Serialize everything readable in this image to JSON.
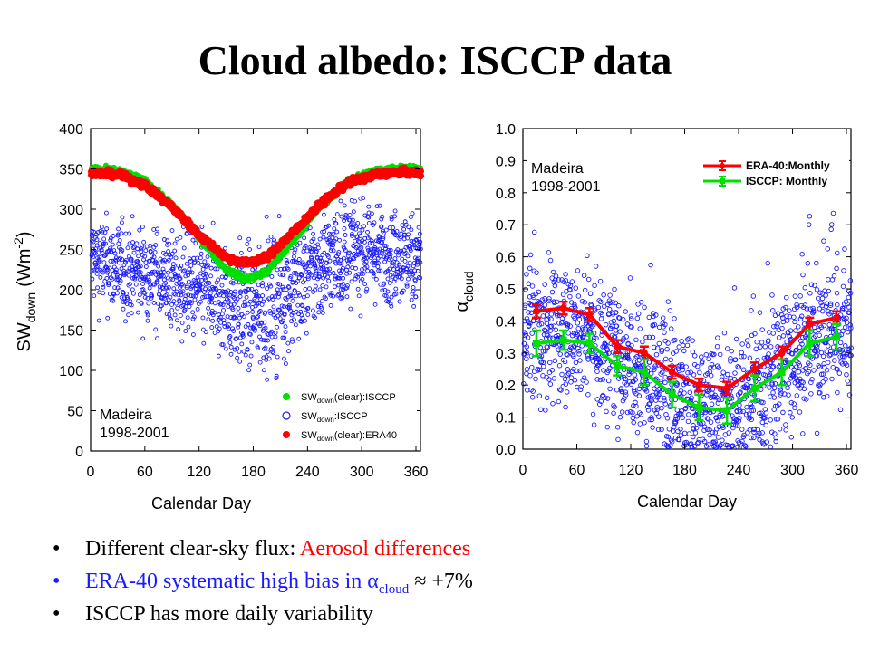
{
  "title": "Cloud albedo: ISCCP data",
  "bullets": [
    {
      "prefix": "Different clear-sky flux: ",
      "highlight": "Aerosol differences"
    },
    {
      "text": "ERA-40 systematic high bias in α",
      "sub": "cloud",
      "suffix": " ≈ +7%"
    },
    {
      "text": "ISCCP has more daily variability"
    }
  ],
  "colors": {
    "red": "#ff0000",
    "green": "#00e000",
    "blue": "#1a1aff"
  },
  "chart_data": [
    {
      "type": "scatter",
      "xlabel": "Calendar Day",
      "ylabel_main": "SW",
      "ylabel_sub": "down",
      "ylabel_unit": "(Wm",
      "ylabel_sup": "-2",
      "ylabel_close": ")",
      "xlim": [
        0,
        365
      ],
      "ylim": [
        0,
        400
      ],
      "xticks": [
        0,
        60,
        120,
        180,
        240,
        300,
        360
      ],
      "yticks": [
        0,
        50,
        100,
        150,
        200,
        250,
        300,
        350,
        400
      ],
      "annotation": [
        "Madeira",
        "1998-2001"
      ],
      "legend_position": "bottom-right",
      "series": [
        {
          "name": "SW",
          "sub": "down",
          "suffix": "(clear):ISCCP",
          "color": "#00e000",
          "marker": "filled",
          "x": [
            0,
            30,
            60,
            90,
            120,
            150,
            172,
            195,
            225,
            255,
            285,
            315,
            345,
            365
          ],
          "values": [
            350,
            348,
            335,
            305,
            265,
            225,
            213,
            222,
            262,
            305,
            335,
            348,
            352,
            350
          ]
        },
        {
          "name": "SW",
          "sub": "down",
          "suffix": ":ISCCP",
          "color": "#1a1aff",
          "marker": "open",
          "x": [
            0,
            30,
            60,
            90,
            120,
            150,
            172,
            200,
            230,
            260,
            290,
            320,
            350,
            365
          ],
          "values": [
            240,
            225,
            220,
            210,
            200,
            185,
            175,
            180,
            205,
            235,
            250,
            245,
            240,
            240
          ],
          "spread": [
            28,
            28,
            28,
            30,
            32,
            35,
            38,
            38,
            35,
            32,
            30,
            28,
            28,
            28
          ]
        },
        {
          "name": "SW",
          "sub": "down",
          "suffix": "(clear):ERA40",
          "color": "#ff0000",
          "marker": "filled",
          "x": [
            0,
            30,
            60,
            90,
            120,
            150,
            172,
            195,
            225,
            255,
            285,
            315,
            345,
            365
          ],
          "values": [
            345,
            343,
            330,
            303,
            268,
            240,
            233,
            240,
            272,
            307,
            333,
            343,
            346,
            345
          ]
        }
      ]
    },
    {
      "type": "scatter",
      "xlabel": "Calendar Day",
      "ylabel_main": "α",
      "ylabel_sub": "cloud",
      "xlim": [
        0,
        365
      ],
      "ylim": [
        0.0,
        1.0
      ],
      "xticks": [
        0,
        60,
        120,
        180,
        240,
        300,
        360
      ],
      "yticks": [
        0.0,
        0.1,
        0.2,
        0.3,
        0.4,
        0.5,
        0.6,
        0.7,
        0.8,
        0.9,
        1.0
      ],
      "annotation": [
        "Madeira",
        "1998-2001"
      ],
      "legend_position": "top-right",
      "scatter": {
        "color": "#1a1aff",
        "x": [
          0,
          30,
          60,
          90,
          120,
          150,
          180,
          200,
          220,
          250,
          280,
          310,
          340,
          365
        ],
        "values": [
          0.36,
          0.37,
          0.37,
          0.33,
          0.28,
          0.23,
          0.16,
          0.12,
          0.12,
          0.17,
          0.24,
          0.31,
          0.37,
          0.38
        ],
        "spread": [
          0.11,
          0.11,
          0.11,
          0.11,
          0.11,
          0.11,
          0.1,
          0.09,
          0.09,
          0.1,
          0.11,
          0.11,
          0.11,
          0.11
        ]
      },
      "series": [
        {
          "name": "ERA-40:Monthly",
          "color": "#ff0000",
          "x": [
            15,
            45,
            74,
            105,
            135,
            166,
            196,
            227,
            258,
            288,
            319,
            349
          ],
          "values": [
            0.43,
            0.44,
            0.42,
            0.32,
            0.3,
            0.24,
            0.2,
            0.19,
            0.25,
            0.3,
            0.39,
            0.41
          ],
          "err": [
            0.02,
            0.02,
            0.02,
            0.02,
            0.02,
            0.02,
            0.02,
            0.02,
            0.02,
            0.02,
            0.02,
            0.02
          ]
        },
        {
          "name": "ISCCP: Monthly",
          "color": "#00e000",
          "x": [
            15,
            45,
            74,
            105,
            135,
            166,
            196,
            227,
            258,
            288,
            319,
            349
          ],
          "values": [
            0.33,
            0.34,
            0.33,
            0.26,
            0.24,
            0.17,
            0.13,
            0.12,
            0.19,
            0.24,
            0.33,
            0.35
          ],
          "err": [
            0.04,
            0.03,
            0.03,
            0.03,
            0.04,
            0.04,
            0.04,
            0.04,
            0.04,
            0.04,
            0.04,
            0.04
          ]
        }
      ]
    }
  ]
}
